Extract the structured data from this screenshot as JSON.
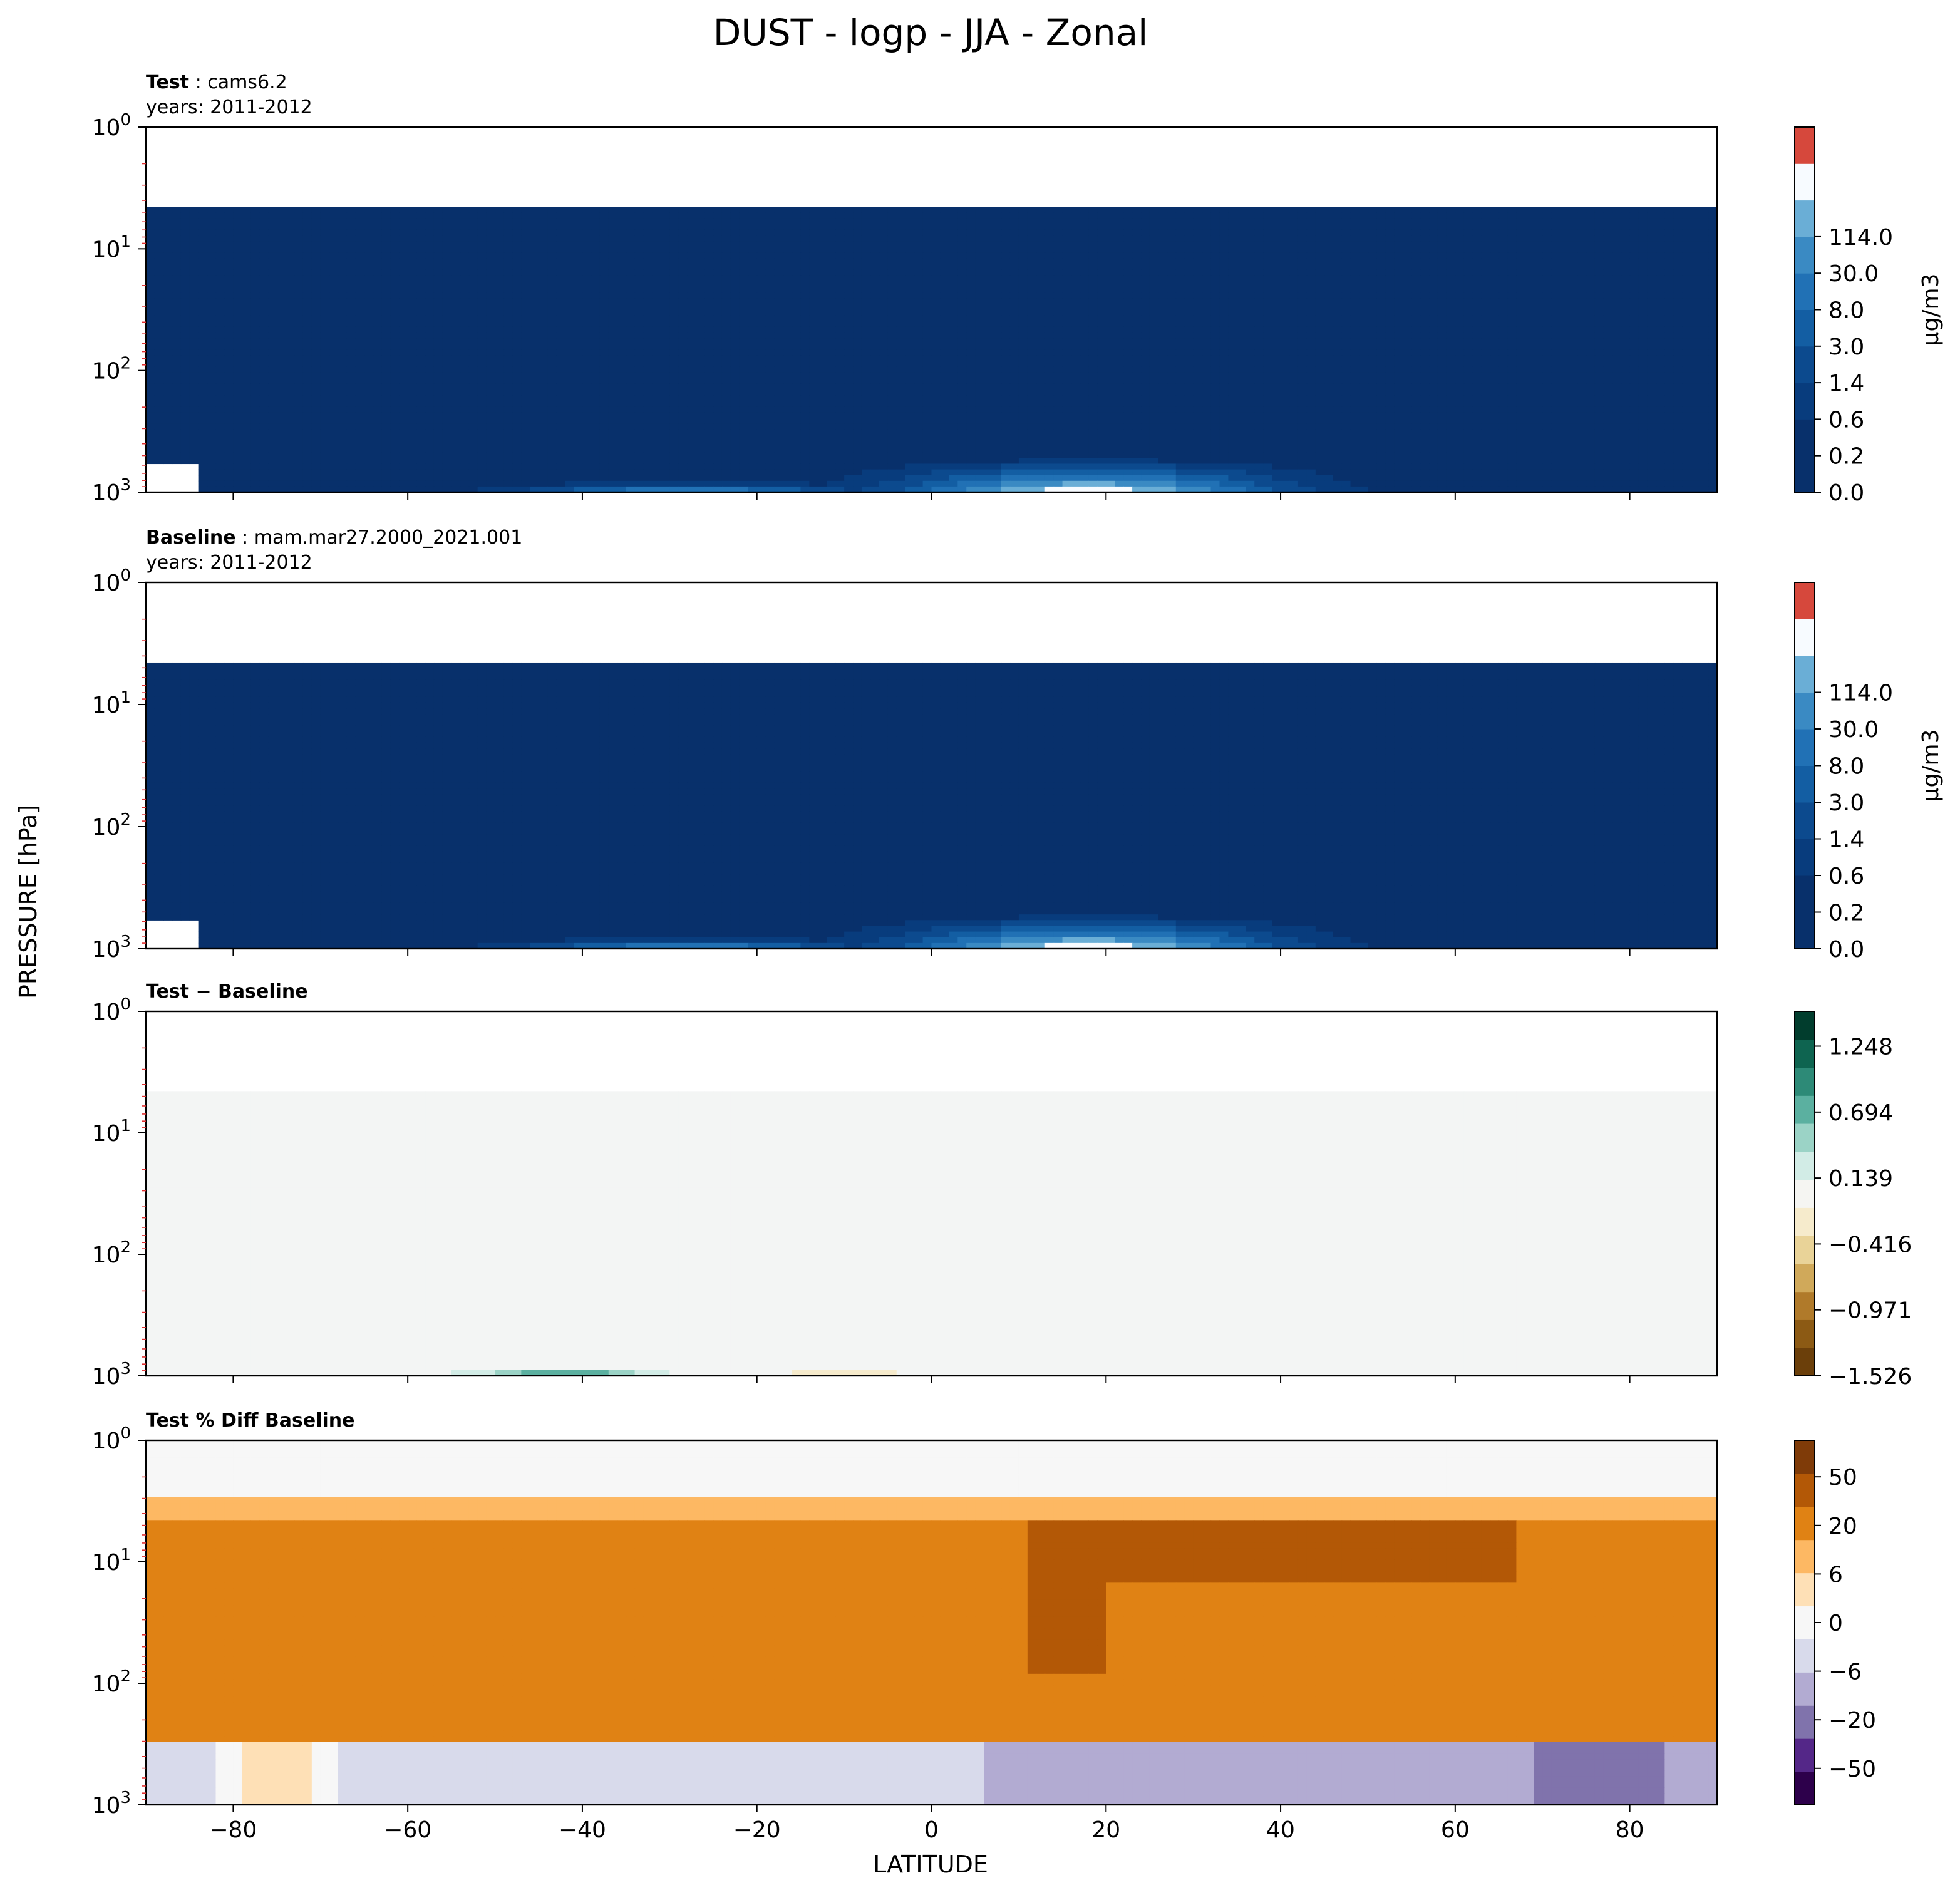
{
  "figure": {
    "title": "DUST - logp - JJA - Zonal",
    "ylabel": "PRESSURE [hPa]",
    "xlabel": "LATITUDE"
  },
  "chart_data": [
    {
      "type": "heatmap",
      "panel_title_bold": "Test",
      "panel_title_rest": ": cams6.2",
      "panel_subtitle": "years: 2011-2012",
      "xlim": [
        -90,
        90
      ],
      "ylim": [
        1000,
        1
      ],
      "yscale": "log",
      "x_ticks": [
        -80,
        -60,
        -40,
        -20,
        0,
        20,
        40,
        60,
        80
      ],
      "show_x_tick_labels": false,
      "y_ticks": [
        {
          "base": "10",
          "exp": "0"
        },
        {
          "base": "10",
          "exp": "1"
        },
        {
          "base": "10",
          "exp": "2"
        },
        {
          "base": "10",
          "exp": "3"
        }
      ],
      "model_top_hpa": 4.5,
      "colorbar": {
        "label": "μg/m3",
        "tick_labels": [
          "0.0",
          "0.2",
          "0.6",
          "1.4",
          "3.0",
          "8.0",
          "30.0",
          "114.0"
        ],
        "colors": [
          "#08306b",
          "#08306b",
          "#083c7d",
          "#0c4a8e",
          "#135ea3",
          "#2171b5",
          "#3a8ac3",
          "#6aaed6",
          "#f7fbff",
          "#d6483c"
        ]
      },
      "features": [
        {
          "kind": "hotspot",
          "lat_range": [
            0,
            52
          ],
          "p_top": 500,
          "peak_lat": 18
        },
        {
          "kind": "hotspot",
          "lat_range": [
            -52,
            -5
          ],
          "p_top": 800,
          "peak_lat": -28
        }
      ]
    },
    {
      "type": "heatmap",
      "panel_title_bold": "Baseline",
      "panel_title_rest": ": mam.mar27.2000_2021.001",
      "panel_subtitle": "years: 2011-2012",
      "xlim": [
        -90,
        90
      ],
      "ylim": [
        1000,
        1
      ],
      "yscale": "log",
      "x_ticks": [
        -80,
        -60,
        -40,
        -20,
        0,
        20,
        40,
        60,
        80
      ],
      "show_x_tick_labels": false,
      "y_ticks": [
        {
          "base": "10",
          "exp": "0"
        },
        {
          "base": "10",
          "exp": "1"
        },
        {
          "base": "10",
          "exp": "2"
        },
        {
          "base": "10",
          "exp": "3"
        }
      ],
      "model_top_hpa": 4.5,
      "colorbar": {
        "label": "μg/m3",
        "tick_labels": [
          "0.0",
          "0.2",
          "0.6",
          "1.4",
          "3.0",
          "8.0",
          "30.0",
          "114.0"
        ],
        "colors": [
          "#08306b",
          "#08306b",
          "#083c7d",
          "#0c4a8e",
          "#135ea3",
          "#2171b5",
          "#3a8ac3",
          "#6aaed6",
          "#f7fbff",
          "#d6483c"
        ]
      },
      "features": [
        {
          "kind": "hotspot",
          "lat_range": [
            0,
            52
          ],
          "p_top": 500,
          "peak_lat": 18
        },
        {
          "kind": "hotspot",
          "lat_range": [
            -52,
            -5
          ],
          "p_top": 800,
          "peak_lat": -28
        }
      ]
    },
    {
      "type": "heatmap",
      "panel_title_bold": "Test − Baseline",
      "panel_title_rest": "",
      "panel_subtitle": "",
      "xlim": [
        -90,
        90
      ],
      "ylim": [
        1000,
        1
      ],
      "yscale": "log",
      "x_ticks": [
        -80,
        -60,
        -40,
        -20,
        0,
        20,
        40,
        60,
        80
      ],
      "show_x_tick_labels": false,
      "y_ticks": [
        {
          "base": "10",
          "exp": "0"
        },
        {
          "base": "10",
          "exp": "1"
        },
        {
          "base": "10",
          "exp": "2"
        },
        {
          "base": "10",
          "exp": "3"
        }
      ],
      "model_top_hpa": 4.5,
      "background_color": "#f3f5f4",
      "colorbar": {
        "label": "",
        "tick_labels": [
          "−1.526",
          "−0.971",
          "−0.416",
          "0.139",
          "0.694",
          "1.248"
        ],
        "colors": [
          "#6b3f0a",
          "#8c5a14",
          "#b07a2a",
          "#d0a95a",
          "#e9d398",
          "#f6ebcc",
          "#f5f5f2",
          "#d2ece6",
          "#9bd3c6",
          "#5bb0a0",
          "#2d8a77",
          "#0e6450",
          "#013d2d"
        ]
      },
      "features": [
        {
          "kind": "positive",
          "lat": -42,
          "lat_width": 20,
          "p_top": 800,
          "peak": 1.4
        },
        {
          "kind": "negative",
          "lat": -10,
          "lat_width": 45,
          "p_top": 850,
          "peak": -0.3
        },
        {
          "kind": "positive",
          "lat": 15,
          "lat_width": 6,
          "p_top": 900,
          "peak": 0.2
        }
      ]
    },
    {
      "type": "heatmap",
      "panel_title_bold": "Test % Diff Baseline",
      "panel_title_rest": "",
      "panel_subtitle": "",
      "xlim": [
        -90,
        90
      ],
      "ylim": [
        1000,
        1
      ],
      "yscale": "log",
      "x_ticks": [
        -80,
        -60,
        -40,
        -20,
        0,
        20,
        40,
        60,
        80
      ],
      "show_x_tick_labels": true,
      "y_ticks": [
        {
          "base": "10",
          "exp": "0"
        },
        {
          "base": "10",
          "exp": "1"
        },
        {
          "base": "10",
          "exp": "2"
        },
        {
          "base": "10",
          "exp": "3"
        }
      ],
      "colorbar": {
        "label": "",
        "tick_labels": [
          "−50",
          "−20",
          "−6",
          "0",
          "6",
          "20",
          "50"
        ],
        "colors": [
          "#2d004b",
          "#542788",
          "#8073ac",
          "#b2abd2",
          "#d8daeb",
          "#f7f7f7",
          "#fee0b6",
          "#fdb863",
          "#e08214",
          "#b35806",
          "#7f3b08"
        ]
      },
      "layers": [
        {
          "p_range": [
            1,
            3
          ],
          "value": 0
        },
        {
          "p_range": [
            3,
            4.5
          ],
          "value": 4
        },
        {
          "p_range": [
            4.5,
            80
          ],
          "value": 15
        },
        {
          "p_range": [
            80,
            300
          ],
          "value": 8
        },
        {
          "p_range": [
            300,
            1000
          ],
          "value": -2
        }
      ]
    }
  ]
}
